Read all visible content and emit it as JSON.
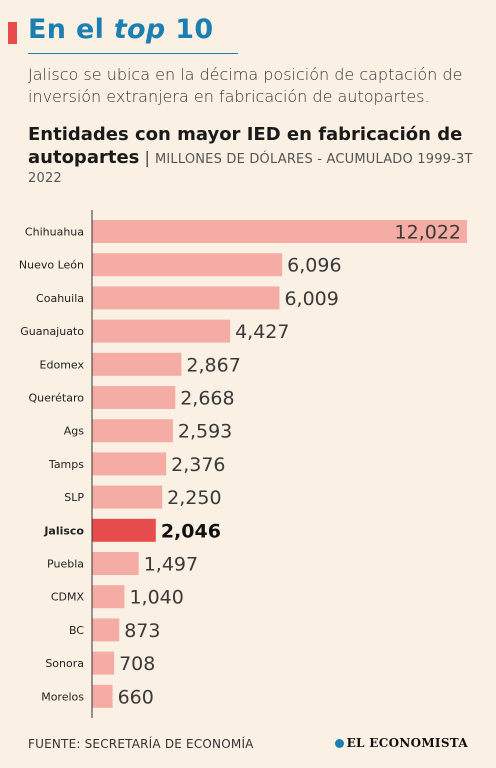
{
  "headline": {
    "prefix": "En el ",
    "italic": "top",
    "suffix": " 10"
  },
  "subtitle": "Jalisco se ubica en la décima posición de captación de inversión extranjera en fabricación de autopartes.",
  "chart_title": {
    "line1": "Entidades con mayor IED en fabricación de",
    "line2_bold": "autopartes",
    "separator": "|",
    "units": "MILLONES DE DÓLARES - ACUMULADO 1999-3T",
    "units_line2": "2022"
  },
  "source": "FUENTE: SECRETARÍA DE ECONOMÍA",
  "brand": "EL ECONOMISTA",
  "colors": {
    "bar": "#f4aca4",
    "highlight": "#e84b4b",
    "title": "#1c7fb3",
    "axis": "#333333"
  },
  "chart_data": {
    "type": "bar",
    "orientation": "horizontal",
    "categories": [
      "Chihuahua",
      "Nuevo León",
      "Coahuila",
      "Guanajuato",
      "Edomex",
      "Querétaro",
      "Ags",
      "Tamps",
      "SLP",
      "Jalisco",
      "Puebla",
      "CDMX",
      "BC",
      "Sonora",
      "Morelos"
    ],
    "values": [
      12022,
      6096,
      6009,
      4427,
      2867,
      2668,
      2593,
      2376,
      2250,
      2046,
      1497,
      1040,
      873,
      708,
      660
    ],
    "value_labels": [
      "12,022",
      "6,096",
      "6,009",
      "4,427",
      "2,867",
      "2,668",
      "2,593",
      "2,376",
      "2,250",
      "2,046",
      "1,497",
      "1,040",
      "873",
      "708",
      "660"
    ],
    "highlight": "Jalisco",
    "title": "Entidades con mayor IED en fabricación de autopartes",
    "xlabel": "",
    "ylabel": "",
    "xlim": [
      0,
      12022
    ],
    "grid": false,
    "legend": "none"
  }
}
